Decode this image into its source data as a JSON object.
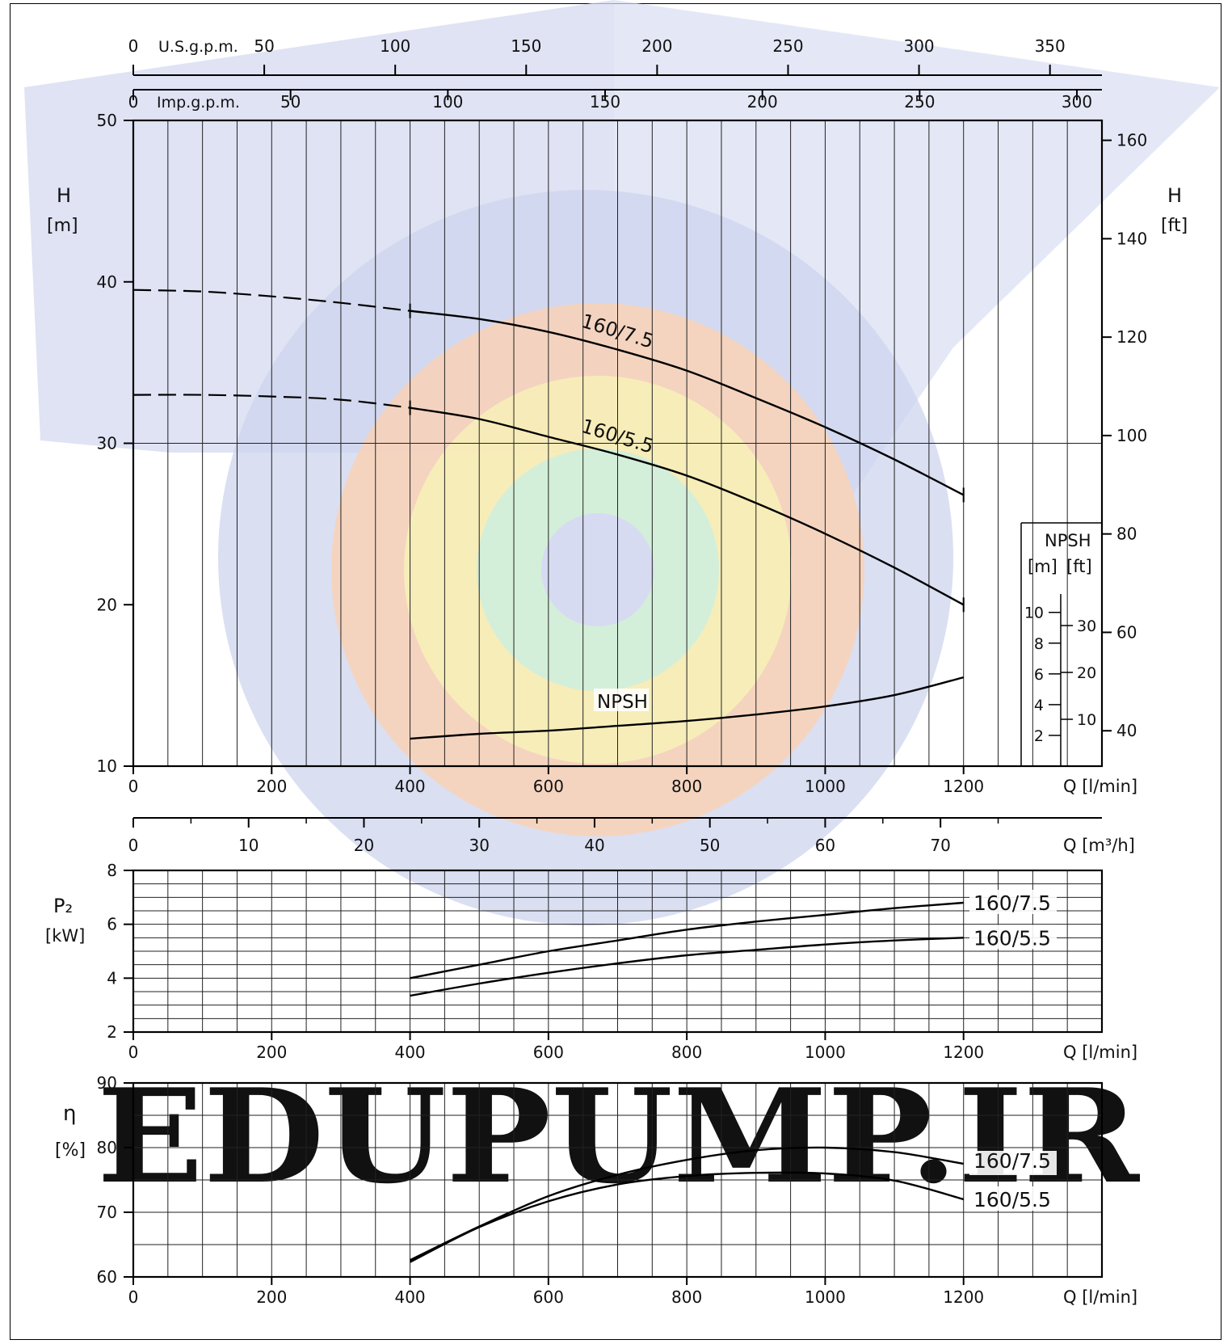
{
  "watermark": {
    "text": "EDUPUMP.IR",
    "color_blue": "#c9d0ec",
    "color_orange": "#f7c9a6"
  },
  "top_scales": {
    "usgpm": {
      "label": "U.S.g.p.m.",
      "ticks": [
        0,
        50,
        100,
        150,
        200,
        250,
        300,
        350
      ]
    },
    "impgpm": {
      "label": "Imp.g.p.m.",
      "ticks": [
        0,
        50,
        100,
        150,
        200,
        250,
        300
      ]
    }
  },
  "m3h_scale": {
    "label": "Q [m³/h]",
    "ticks": [
      0,
      10,
      20,
      30,
      40,
      50,
      60,
      70
    ]
  },
  "npsh_axis": {
    "title": "NPSH",
    "unit_m": "[m]",
    "unit_ft": "[ft]",
    "m_ticks": [
      2,
      4,
      6,
      8,
      10
    ],
    "ft_ticks": [
      10,
      20,
      30
    ]
  },
  "chart_data": [
    {
      "type": "line",
      "name": "head",
      "ylabel": "H",
      "yunit": "[m]",
      "y2label": "H",
      "y2unit": "[ft]",
      "xlabel": "Q [l/min]",
      "xlim": [
        0,
        1400
      ],
      "ylim": [
        10,
        50
      ],
      "xticks": [
        0,
        200,
        400,
        600,
        800,
        1000,
        1200
      ],
      "yticks": [
        10,
        20,
        30,
        40,
        50
      ],
      "y2ticks": [
        40,
        60,
        80,
        100,
        120,
        140,
        160
      ],
      "grid": true,
      "series": [
        {
          "name": "160/7.5",
          "dashed_x": [
            0,
            100,
            200,
            300,
            400
          ],
          "dashed_y": [
            39.5,
            39.4,
            39.1,
            38.7,
            38.2
          ],
          "x": [
            400,
            500,
            600,
            700,
            800,
            900,
            1000,
            1100,
            1200
          ],
          "y": [
            38.2,
            37.7,
            36.9,
            35.8,
            34.5,
            32.8,
            31.0,
            29.0,
            26.8
          ]
        },
        {
          "name": "160/5.5",
          "dashed_x": [
            0,
            100,
            200,
            300,
            400
          ],
          "dashed_y": [
            33.0,
            33.0,
            32.9,
            32.7,
            32.2
          ],
          "x": [
            400,
            500,
            600,
            700,
            800,
            900,
            1000,
            1100,
            1200
          ],
          "y": [
            32.2,
            31.5,
            30.4,
            29.3,
            28.0,
            26.3,
            24.4,
            22.3,
            20.0
          ]
        },
        {
          "name": "NPSH",
          "x": [
            400,
            500,
            600,
            700,
            800,
            900,
            1000,
            1100,
            1200
          ],
          "y": [
            11.7,
            12.0,
            12.2,
            12.5,
            12.8,
            13.2,
            13.7,
            14.4,
            15.5
          ]
        }
      ]
    },
    {
      "type": "line",
      "name": "power",
      "ylabel": "P₂",
      "yunit": "[kW]",
      "xlabel": "Q [l/min]",
      "xlim": [
        0,
        1400
      ],
      "ylim": [
        2,
        8
      ],
      "xticks": [
        0,
        200,
        400,
        600,
        800,
        1000,
        1200
      ],
      "yticks": [
        2,
        4,
        6,
        8
      ],
      "grid": true,
      "series": [
        {
          "name": "160/7.5",
          "x": [
            400,
            500,
            600,
            700,
            800,
            900,
            1000,
            1100,
            1200
          ],
          "y": [
            4.0,
            4.5,
            5.0,
            5.4,
            5.8,
            6.1,
            6.35,
            6.6,
            6.8
          ]
        },
        {
          "name": "160/5.5",
          "x": [
            400,
            500,
            600,
            700,
            800,
            900,
            1000,
            1100,
            1200
          ],
          "y": [
            3.35,
            3.8,
            4.2,
            4.55,
            4.85,
            5.05,
            5.25,
            5.4,
            5.5
          ]
        }
      ]
    },
    {
      "type": "line",
      "name": "efficiency",
      "ylabel": "η",
      "yunit": "[%]",
      "xlabel": "Q [l/min]",
      "xlim": [
        0,
        1400
      ],
      "ylim": [
        60,
        90
      ],
      "xticks": [
        0,
        200,
        400,
        600,
        800,
        1000,
        1200
      ],
      "yticks": [
        60,
        70,
        80,
        90
      ],
      "grid": true,
      "series": [
        {
          "name": "160/7.5",
          "x": [
            400,
            500,
            600,
            700,
            800,
            900,
            1000,
            1100,
            1200
          ],
          "y": [
            62.6,
            67.8,
            72.5,
            75.8,
            78.1,
            79.6,
            80.0,
            79.3,
            77.5
          ]
        },
        {
          "name": "160/5.5",
          "x": [
            400,
            500,
            600,
            700,
            800,
            900,
            1000,
            1100,
            1200
          ],
          "y": [
            62.3,
            67.7,
            71.7,
            74.3,
            75.6,
            76.1,
            76.0,
            74.9,
            72.0
          ]
        }
      ]
    }
  ]
}
